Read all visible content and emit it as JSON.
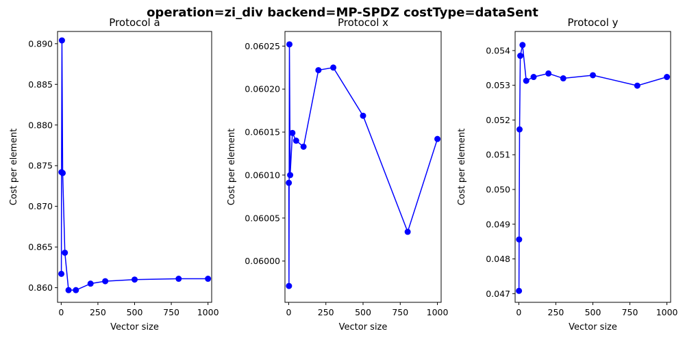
{
  "figure": {
    "title": "operation=zi_div backend=MP-SPDZ costType=dataSent",
    "line_color": "#0000ff"
  },
  "chart_data": [
    {
      "type": "line",
      "title": "Protocol a",
      "xlabel": "Vector size",
      "ylabel": "Cost per element",
      "xlim": [
        -25,
        1025
      ],
      "ylim": [
        0.8582,
        0.8915
      ],
      "xticks": [
        0,
        250,
        500,
        750,
        1000
      ],
      "xtick_labels": [
        "0",
        "250",
        "500",
        "750",
        "1000"
      ],
      "yticks": [
        0.86,
        0.865,
        0.87,
        0.875,
        0.88,
        0.885,
        0.89
      ],
      "ytick_labels": [
        "0.860",
        "0.865",
        "0.870",
        "0.875",
        "0.880",
        "0.885",
        "0.890"
      ],
      "marker": "circle",
      "series": [
        {
          "x": [
            1,
            2,
            5,
            10,
            25,
            50,
            100,
            200,
            300,
            500,
            800,
            1000
          ],
          "y": [
            0.8617,
            0.8742,
            0.8904,
            0.8741,
            0.8643,
            0.8597,
            0.8597,
            0.8605,
            0.8608,
            0.861,
            0.8611,
            0.8611
          ]
        }
      ]
    },
    {
      "type": "line",
      "title": "Protocol x",
      "xlabel": "Vector size",
      "ylabel": "Cost per element",
      "xlim": [
        -25,
        1025
      ],
      "ylim": [
        0.059952,
        0.060267
      ],
      "xticks": [
        0,
        250,
        500,
        750,
        1000
      ],
      "xtick_labels": [
        "0",
        "250",
        "500",
        "750",
        "1000"
      ],
      "yticks": [
        0.06,
        0.06005,
        0.0601,
        0.06015,
        0.0602,
        0.06025
      ],
      "ytick_labels": [
        "0.06000",
        "0.06005",
        "0.06010",
        "0.06015",
        "0.06020",
        "0.06025"
      ],
      "marker": "circle",
      "series": [
        {
          "x": [
            1,
            2,
            5,
            10,
            25,
            50,
            100,
            200,
            300,
            500,
            800,
            1000
          ],
          "y": [
            0.060091,
            0.059971,
            0.060252,
            0.0601,
            0.060149,
            0.06014,
            0.060133,
            0.060222,
            0.060225,
            0.060169,
            0.060034,
            0.060142
          ]
        }
      ]
    },
    {
      "type": "line",
      "title": "Protocol y",
      "xlabel": "Vector size",
      "ylabel": "Cost per element",
      "xlim": [
        -25,
        1025
      ],
      "ylim": [
        0.04675,
        0.05455
      ],
      "xticks": [
        0,
        250,
        500,
        750,
        1000
      ],
      "xtick_labels": [
        "0",
        "250",
        "500",
        "750",
        "1000"
      ],
      "yticks": [
        0.047,
        0.048,
        0.049,
        0.05,
        0.051,
        0.052,
        0.053,
        0.054
      ],
      "ytick_labels": [
        "0.047",
        "0.048",
        "0.049",
        "0.050",
        "0.051",
        "0.052",
        "0.053",
        "0.054"
      ],
      "marker": "circle",
      "series": [
        {
          "x": [
            1,
            2,
            5,
            10,
            25,
            50,
            100,
            200,
            300,
            500,
            800,
            1000
          ],
          "y": [
            0.04708,
            0.04856,
            0.05173,
            0.05385,
            0.05416,
            0.05313,
            0.05324,
            0.05334,
            0.0532,
            0.05329,
            0.05299,
            0.05324
          ]
        }
      ]
    }
  ]
}
